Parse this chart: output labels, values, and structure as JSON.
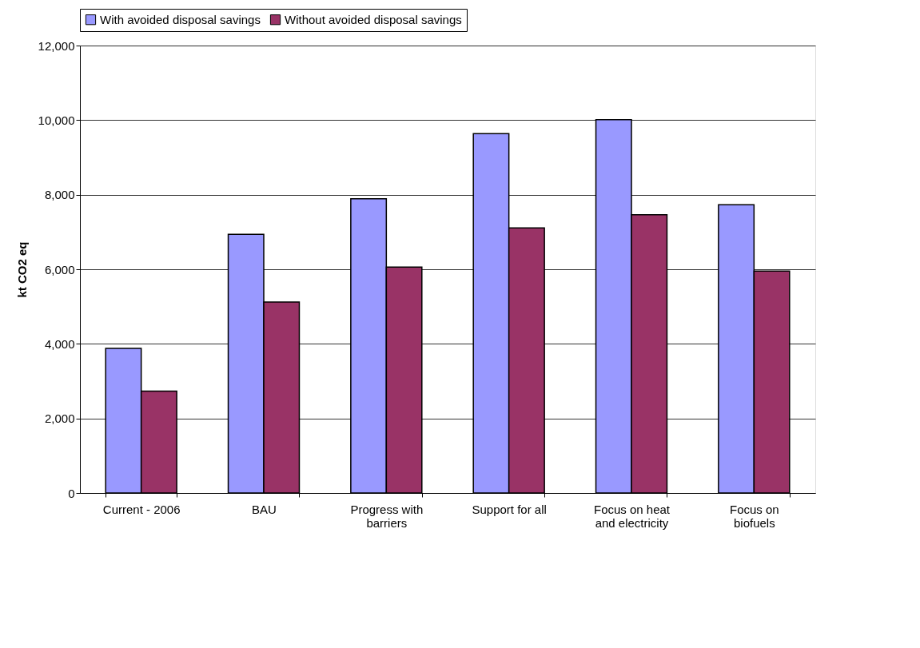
{
  "chart_data": {
    "type": "bar",
    "ylabel": "kt CO2 eq",
    "categories": [
      "Current - 2006",
      "BAU",
      "Progress with barriers",
      "Support for all",
      "Focus on heat and electricity",
      "Focus on biofuels"
    ],
    "series": [
      {
        "name": "With avoided disposal savings",
        "color": "#9999ff",
        "values": [
          3880,
          6940,
          7890,
          9640,
          10010,
          7730
        ]
      },
      {
        "name": "Without avoided disposal savings",
        "color": "#993366",
        "values": [
          2730,
          5120,
          6060,
          7110,
          7460,
          5950
        ]
      }
    ],
    "ylim": [
      0,
      12000
    ],
    "yticks": [
      0,
      {
        "value": 2000,
        "label": "2,000"
      },
      {
        "value": 4000,
        "label": "4,000"
      },
      {
        "value": 6000,
        "label": "6,000"
      },
      {
        "value": 8000,
        "label": "8,000"
      },
      {
        "value": 10000,
        "label": "10,000"
      },
      {
        "value": 12000,
        "label": "12,000"
      }
    ],
    "grid": "y",
    "legend": "top"
  }
}
